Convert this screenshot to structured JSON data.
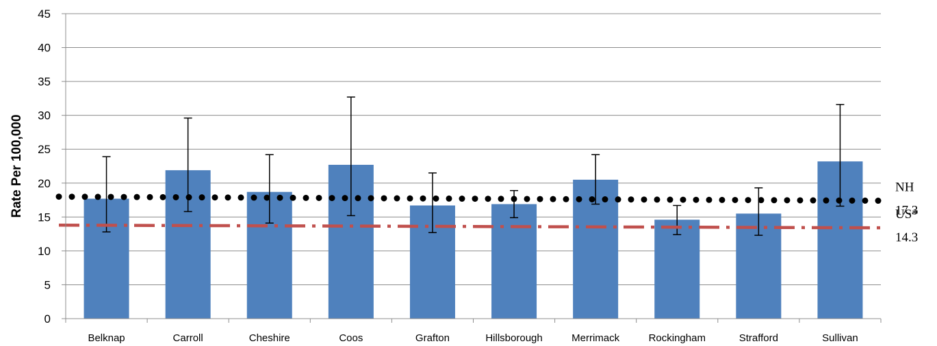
{
  "chart_data": {
    "type": "bar",
    "title": "",
    "xlabel": "",
    "ylabel": "Rate Per 100,000",
    "ylim": [
      0,
      45
    ],
    "yticks": [
      0,
      5,
      10,
      15,
      20,
      25,
      30,
      35,
      40,
      45
    ],
    "grid": true,
    "categories": [
      "Belknap",
      "Carroll",
      "Cheshire",
      "Coos",
      "Grafton",
      "Hillsborough",
      "Merrimack",
      "Rockingham",
      "Strafford",
      "Sullivan"
    ],
    "values": [
      17.7,
      21.9,
      18.7,
      22.7,
      16.7,
      16.9,
      20.5,
      14.6,
      15.5,
      23.2
    ],
    "error_low": [
      12.8,
      15.8,
      14.1,
      15.2,
      12.7,
      14.9,
      16.9,
      12.4,
      12.3,
      16.6
    ],
    "error_high": [
      23.9,
      29.6,
      24.2,
      32.7,
      21.5,
      18.9,
      24.2,
      16.7,
      19.3,
      31.6
    ],
    "bar_color": "#4f81bd",
    "reference_lines": [
      {
        "name": "NH",
        "value_label": "17.3",
        "start": 18.0,
        "end": 17.4,
        "color": "#000000",
        "style": "dotted"
      },
      {
        "name": "US*",
        "value_label": "14.3",
        "start": 13.8,
        "end": 13.4,
        "color": "#c0504d",
        "style": "dash-dot"
      }
    ]
  }
}
